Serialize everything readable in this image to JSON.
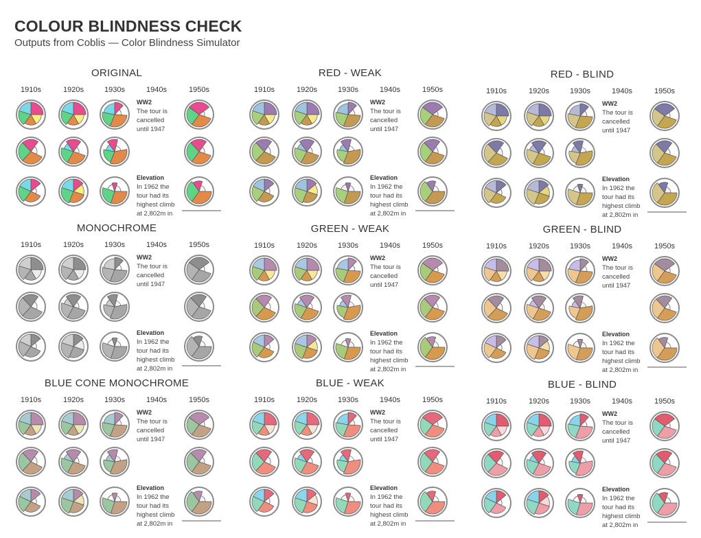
{
  "header": {
    "title": "COLOUR BLINDNESS CHECK",
    "subtitle": "Outputs from Coblis —  Color Blindness Simulator"
  },
  "chart_data": {
    "type": "small-multiples-pie",
    "decades": [
      "1910s",
      "1920s",
      "1930s",
      "1940s",
      "1950s"
    ],
    "rows": 3,
    "notes": {
      "ww2": {
        "title": "WW2",
        "lines": [
          "The tour is",
          "cancelled",
          "until 1947"
        ]
      },
      "elevation": {
        "title": "Elevation",
        "lines": [
          "In 1962 the",
          "tour had its",
          "highest climb",
          "at 2,802m in"
        ]
      }
    },
    "palettes": [
      {
        "name": "ORIGINAL",
        "colors": [
          "#e94b8f",
          "#fbf07e",
          "#e48a49",
          "#5fd486",
          "#7ad8e8",
          "#f4f4f4"
        ]
      },
      {
        "name": "RED - WEAK",
        "colors": [
          "#9b7bb0",
          "#f6ea8a",
          "#c49a52",
          "#a8cf7c",
          "#9fc4e0",
          "#f4f4f4"
        ]
      },
      {
        "name": "RED - BLIND",
        "colors": [
          "#7e7aa8",
          "#e6d77f",
          "#c4a650",
          "#d4c68a",
          "#b6bad6",
          "#f2f2f2"
        ]
      },
      {
        "name": "MONOCHROME",
        "colors": [
          "#8e8e8e",
          "#ececec",
          "#a6a6a6",
          "#b4b4b4",
          "#cfcfcf",
          "#f7f7f7"
        ]
      },
      {
        "name": "GREEN - WEAK",
        "colors": [
          "#b58aae",
          "#f7e79a",
          "#d6994e",
          "#a9c97b",
          "#a8c8e4",
          "#f4f4f4"
        ]
      },
      {
        "name": "GREEN - BLIND",
        "colors": [
          "#a28c9e",
          "#f6dfa6",
          "#d59e58",
          "#eec790",
          "#c6bde9",
          "#f4f4f4"
        ]
      },
      {
        "name": "BLUE CONE MONOCHROME",
        "colors": [
          "#b68cac",
          "#ede5b4",
          "#c2a184",
          "#9cc6a0",
          "#a7cbd0",
          "#f4f4f4"
        ]
      },
      {
        "name": "BLUE - WEAK",
        "colors": [
          "#e4697c",
          "#f8e3d4",
          "#ef8e7e",
          "#91d9b9",
          "#8bd6ea",
          "#f4f4f4"
        ]
      },
      {
        "name": "BLUE - BLIND",
        "colors": [
          "#e25c70",
          "#fbd8dc",
          "#ee9ea6",
          "#8fd8c4",
          "#8bd3ea",
          "#f4f4f4"
        ]
      }
    ],
    "ring_color": "#8a8a8a",
    "grid": [
      [
        "A",
        "A",
        "B",
        null,
        "C"
      ],
      [
        "D",
        "E",
        "F",
        null,
        "G"
      ],
      [
        "H",
        "I",
        "J",
        null,
        "K"
      ]
    ],
    "pie_layouts": {
      "A": [
        [
          0,
          0.25,
          0
        ],
        [
          0.25,
          0.17,
          1
        ],
        [
          0.42,
          0.18,
          2
        ],
        [
          0.6,
          0.2,
          3
        ],
        [
          0.8,
          0.2,
          4
        ]
      ],
      "B": [
        [
          0,
          0.12,
          0
        ],
        [
          0.12,
          0.14,
          5
        ],
        [
          0.26,
          0.3,
          2
        ],
        [
          0.56,
          0.22,
          3
        ],
        [
          0.78,
          0.22,
          4
        ]
      ],
      "C": [
        [
          0.85,
          0.3,
          0
        ],
        [
          0.15,
          0.15,
          5
        ],
        [
          0.3,
          0.3,
          2
        ],
        [
          0.6,
          0.25,
          3
        ]
      ],
      "D": [
        [
          0.88,
          0.22,
          0
        ],
        [
          0.1,
          0.22,
          5
        ],
        [
          0.32,
          0.3,
          2
        ],
        [
          0.62,
          0.26,
          3
        ]
      ],
      "E": [
        [
          0.9,
          0.2,
          0
        ],
        [
          0.1,
          0.2,
          5
        ],
        [
          0.3,
          0.28,
          2
        ],
        [
          0.58,
          0.22,
          3
        ],
        [
          0.8,
          0.1,
          4
        ]
      ],
      "F": [
        [
          0.9,
          0.14,
          0
        ],
        [
          0.04,
          0.18,
          5
        ],
        [
          0.22,
          0.34,
          2
        ],
        [
          0.56,
          0.22,
          3
        ],
        [
          0.78,
          0.12,
          4
        ]
      ],
      "G": [
        [
          0.88,
          0.22,
          0
        ],
        [
          0.1,
          0.2,
          5
        ],
        [
          0.3,
          0.3,
          2
        ],
        [
          0.6,
          0.28,
          3
        ]
      ],
      "H": [
        [
          0,
          0.14,
          0
        ],
        [
          0.14,
          0.18,
          5
        ],
        [
          0.32,
          0.28,
          2
        ],
        [
          0.6,
          0.22,
          3
        ],
        [
          0.82,
          0.18,
          4
        ]
      ],
      "I": [
        [
          0,
          0.14,
          0
        ],
        [
          0.14,
          0.16,
          1
        ],
        [
          0.3,
          0.26,
          2
        ],
        [
          0.56,
          0.24,
          3
        ],
        [
          0.8,
          0.2,
          4
        ]
      ],
      "J": [
        [
          0.95,
          0.1,
          0
        ],
        [
          0.05,
          0.2,
          5
        ],
        [
          0.25,
          0.3,
          2
        ],
        [
          0.55,
          0.25,
          3
        ],
        [
          0.8,
          0.15,
          5
        ]
      ],
      "K": [
        [
          0.9,
          0.15,
          0
        ],
        [
          0.05,
          0.2,
          5
        ],
        [
          0.25,
          0.35,
          2
        ],
        [
          0.6,
          0.3,
          3
        ]
      ]
    },
    "radius_scale": {
      "A": [
        1,
        0.85,
        0.85,
        1,
        1
      ],
      "B": [
        1,
        0.55,
        1,
        1,
        0.9
      ],
      "C": [
        1,
        0.45,
        1,
        1
      ],
      "D": [
        1,
        0.5,
        1,
        1
      ],
      "E": [
        1,
        0.45,
        1,
        1,
        0.8
      ],
      "F": [
        1,
        0.5,
        1,
        0.9,
        0.7
      ],
      "G": [
        1,
        0.45,
        1,
        1
      ],
      "H": [
        1,
        0.45,
        0.85,
        1,
        1
      ],
      "I": [
        1,
        0.85,
        0.9,
        1,
        1
      ],
      "J": [
        0.7,
        0.5,
        1,
        1,
        0.6
      ],
      "K": [
        0.85,
        0.5,
        1,
        1
      ]
    }
  }
}
